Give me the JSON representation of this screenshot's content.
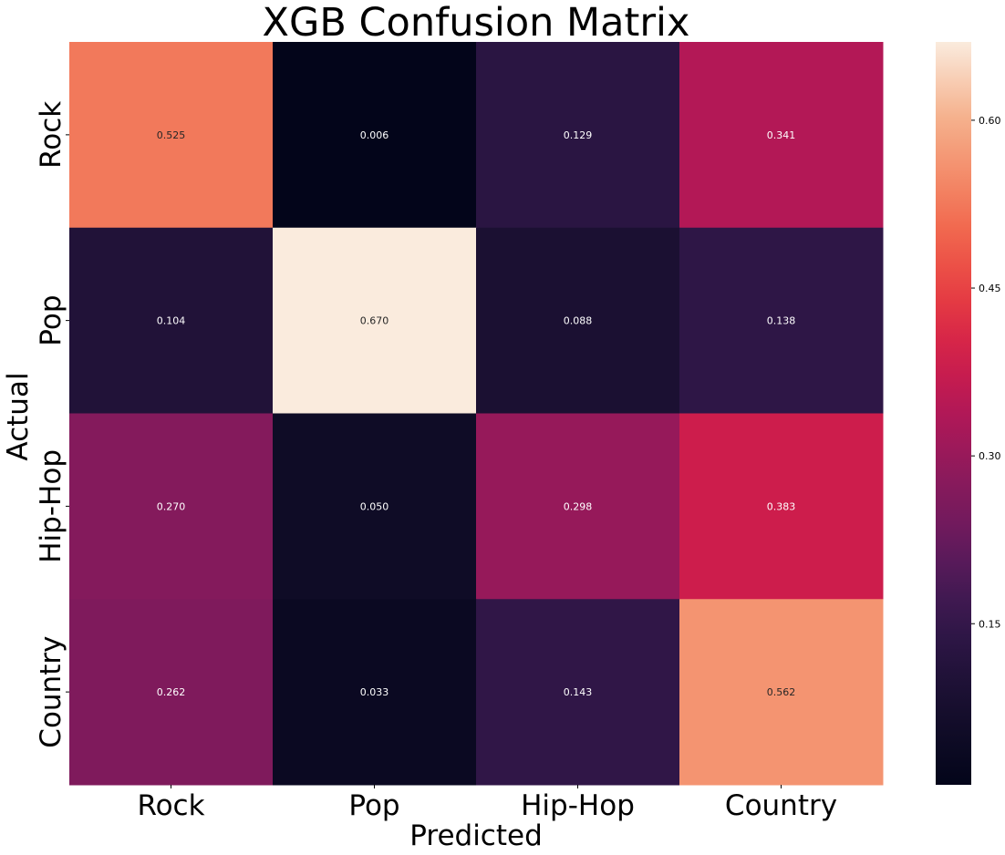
{
  "chart_data": {
    "type": "heatmap",
    "title": "XGB Confusion Matrix",
    "xlabel": "Predicted",
    "ylabel": "Actual",
    "x_categories": [
      "Rock",
      "Pop",
      "Hip-Hop",
      "Country"
    ],
    "y_categories": [
      "Rock",
      "Pop",
      "Hip-Hop",
      "Country"
    ],
    "values": [
      [
        0.525,
        0.006,
        0.129,
        0.341
      ],
      [
        0.104,
        0.67,
        0.088,
        0.138
      ],
      [
        0.27,
        0.05,
        0.298,
        0.383
      ],
      [
        0.262,
        0.033,
        0.143,
        0.562
      ]
    ],
    "value_labels": [
      [
        "0.525",
        "0.006",
        "0.129",
        "0.341"
      ],
      [
        "0.104",
        "0.670",
        "0.088",
        "0.138"
      ],
      [
        "0.270",
        "0.050",
        "0.298",
        "0.383"
      ],
      [
        "0.262",
        "0.033",
        "0.143",
        "0.562"
      ]
    ],
    "colorbar": {
      "ticks": [
        0.15,
        0.3,
        0.45,
        0.6
      ],
      "tick_labels": [
        "0.15",
        "0.30",
        "0.45",
        "0.60"
      ],
      "range": [
        0.006,
        0.67
      ]
    },
    "colormap": "rocket",
    "grid": false
  }
}
